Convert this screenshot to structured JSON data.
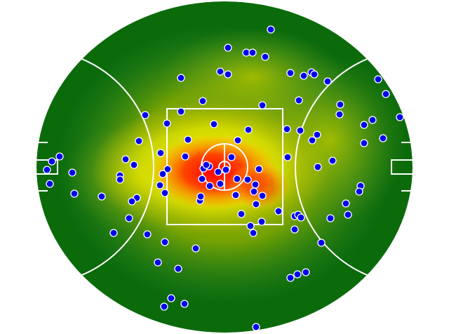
{
  "colors": {
    "field_base": "#0b6b0b",
    "heat_low": "#3a8a3a",
    "heat_mid": "#d8d800",
    "heat_high_yellow": "#ffff00",
    "heat_hot": "#ff0000",
    "lines": "#ffffff",
    "dot_fill": "#0000ee",
    "dot_stroke": "#ffffff"
  }
}
